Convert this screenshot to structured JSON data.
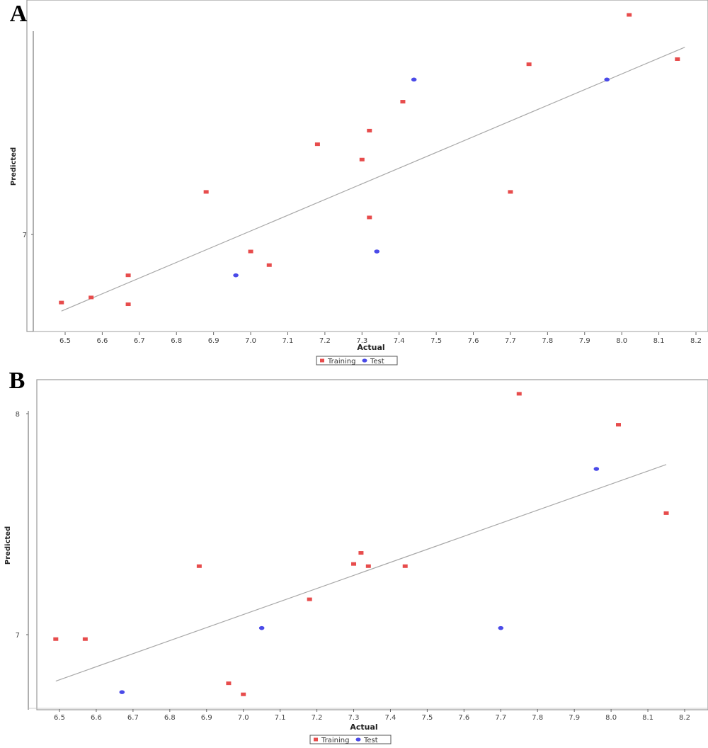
{
  "chart_data": [
    {
      "type": "scatter",
      "panel_label": "A",
      "xlabel": "Actual",
      "ylabel": "Predicted",
      "x_ticks": [
        "6.5",
        "6.6",
        "6.7",
        "6.8",
        "6.9",
        "7.0",
        "7.1",
        "7.2",
        "7.3",
        "7.4",
        "7.5",
        "7.6",
        "7.7",
        "7.8",
        "7.9",
        "8.0",
        "8.1",
        "8.2"
      ],
      "y_ticks": [
        "7"
      ],
      "xlim": [
        6.44,
        8.22
      ],
      "ylim": [
        6.55,
        8.3
      ],
      "grid": false,
      "legend_position": "bottom-center",
      "fit_line": {
        "x": [
          6.49,
          8.17
        ],
        "y": [
          6.55,
          8.1
        ]
      },
      "series": [
        {
          "name": "Training",
          "color": "#e74c4c",
          "marker": "square",
          "points": [
            {
              "x": 6.49,
              "y": 6.6
            },
            {
              "x": 6.57,
              "y": 6.63
            },
            {
              "x": 6.67,
              "y": 6.76
            },
            {
              "x": 6.67,
              "y": 6.59
            },
            {
              "x": 6.88,
              "y": 7.25
            },
            {
              "x": 7.0,
              "y": 6.9
            },
            {
              "x": 7.05,
              "y": 6.82
            },
            {
              "x": 7.18,
              "y": 7.53
            },
            {
              "x": 7.3,
              "y": 7.44
            },
            {
              "x": 7.32,
              "y": 7.61
            },
            {
              "x": 7.32,
              "y": 7.1
            },
            {
              "x": 7.41,
              "y": 7.78
            },
            {
              "x": 7.7,
              "y": 7.25
            },
            {
              "x": 7.75,
              "y": 8.0
            },
            {
              "x": 8.02,
              "y": 8.29
            },
            {
              "x": 8.15,
              "y": 8.03
            }
          ]
        },
        {
          "name": "Test",
          "color": "#4a4ae8",
          "marker": "circle",
          "points": [
            {
              "x": 6.96,
              "y": 6.76
            },
            {
              "x": 7.34,
              "y": 6.9
            },
            {
              "x": 7.44,
              "y": 7.91
            },
            {
              "x": 7.96,
              "y": 7.91
            }
          ]
        }
      ]
    },
    {
      "type": "scatter",
      "panel_label": "B",
      "xlabel": "Actual",
      "ylabel": "Predicted",
      "x_ticks": [
        "6.5",
        "6.6",
        "6.7",
        "6.8",
        "6.9",
        "7.0",
        "7.1",
        "7.2",
        "7.3",
        "7.4",
        "7.5",
        "7.6",
        "7.7",
        "7.8",
        "7.9",
        "8.0",
        "8.1",
        "8.2"
      ],
      "y_ticks": [
        "7",
        "8"
      ],
      "xlim": [
        6.44,
        8.22
      ],
      "ylim": [
        6.7,
        8.15
      ],
      "grid": false,
      "legend_position": "bottom-center",
      "fit_line": {
        "x": [
          6.49,
          8.15
        ],
        "y": [
          6.79,
          7.77
        ]
      },
      "series": [
        {
          "name": "Training",
          "color": "#e74c4c",
          "marker": "square",
          "points": [
            {
              "x": 6.49,
              "y": 6.98
            },
            {
              "x": 6.57,
              "y": 6.98
            },
            {
              "x": 6.88,
              "y": 7.31
            },
            {
              "x": 6.96,
              "y": 6.78
            },
            {
              "x": 7.0,
              "y": 6.73
            },
            {
              "x": 7.18,
              "y": 7.16
            },
            {
              "x": 7.3,
              "y": 7.32
            },
            {
              "x": 7.32,
              "y": 7.37
            },
            {
              "x": 7.34,
              "y": 7.31
            },
            {
              "x": 7.44,
              "y": 7.31
            },
            {
              "x": 7.75,
              "y": 8.09
            },
            {
              "x": 8.02,
              "y": 7.95
            },
            {
              "x": 8.15,
              "y": 7.55
            }
          ]
        },
        {
          "name": "Test",
          "color": "#4a4ae8",
          "marker": "circle",
          "points": [
            {
              "x": 6.67,
              "y": 6.74
            },
            {
              "x": 7.05,
              "y": 7.03
            },
            {
              "x": 7.7,
              "y": 7.03
            },
            {
              "x": 7.96,
              "y": 7.75
            }
          ]
        }
      ]
    }
  ]
}
